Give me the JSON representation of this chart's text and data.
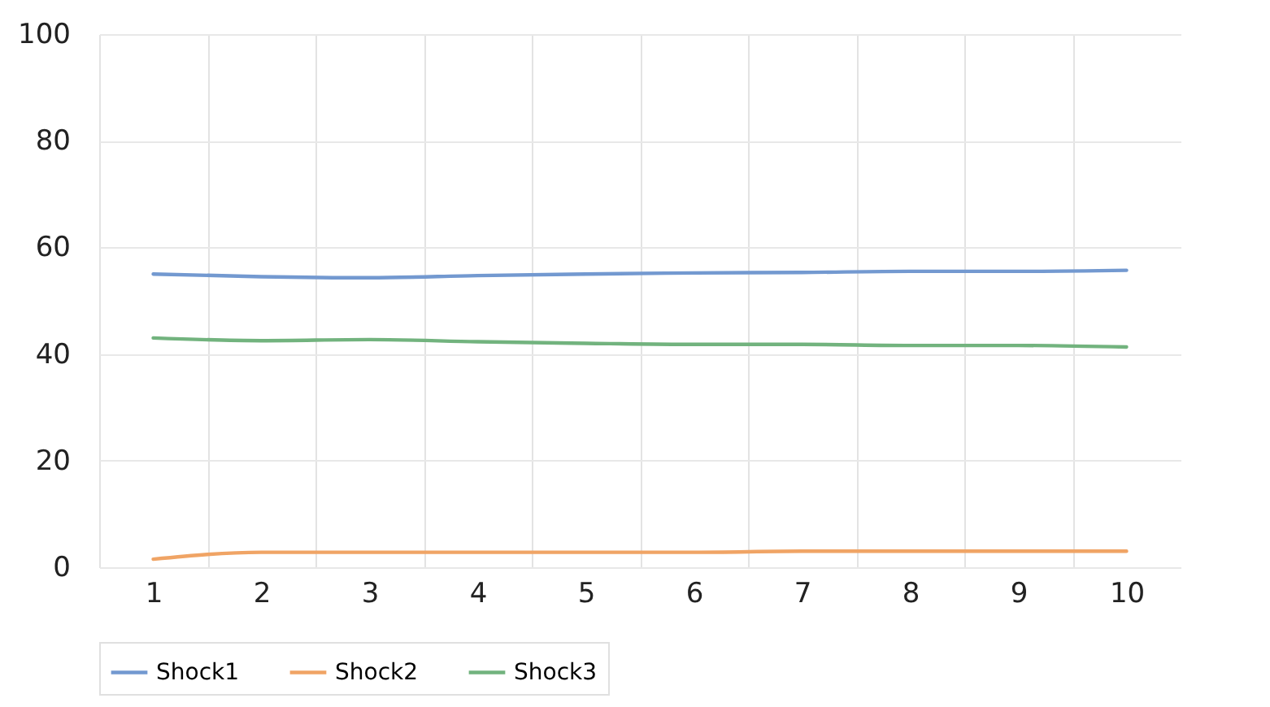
{
  "chart_data": {
    "type": "line",
    "categories": [
      "1",
      "2",
      "3",
      "4",
      "5",
      "6",
      "7",
      "8",
      "9",
      "10"
    ],
    "series": [
      {
        "name": "Shock1",
        "color": "#7399d0",
        "values": [
          55,
          54.5,
          54.3,
          54.7,
          55,
          55.2,
          55.3,
          55.5,
          55.5,
          55.7
        ]
      },
      {
        "name": "Shock2",
        "color": "#f0a465",
        "values": [
          1.5,
          2.8,
          2.8,
          2.8,
          2.8,
          2.8,
          3,
          3,
          3,
          3
        ]
      },
      {
        "name": "Shock3",
        "color": "#72b37e",
        "values": [
          43,
          42.5,
          42.7,
          42.3,
          42,
          41.8,
          41.8,
          41.6,
          41.6,
          41.3
        ]
      }
    ],
    "ylim": [
      0,
      100
    ],
    "yticks": [
      0,
      20,
      40,
      60,
      80,
      100
    ],
    "grid": true,
    "legend": "bottom",
    "line_style": "solid",
    "marker": "none"
  }
}
